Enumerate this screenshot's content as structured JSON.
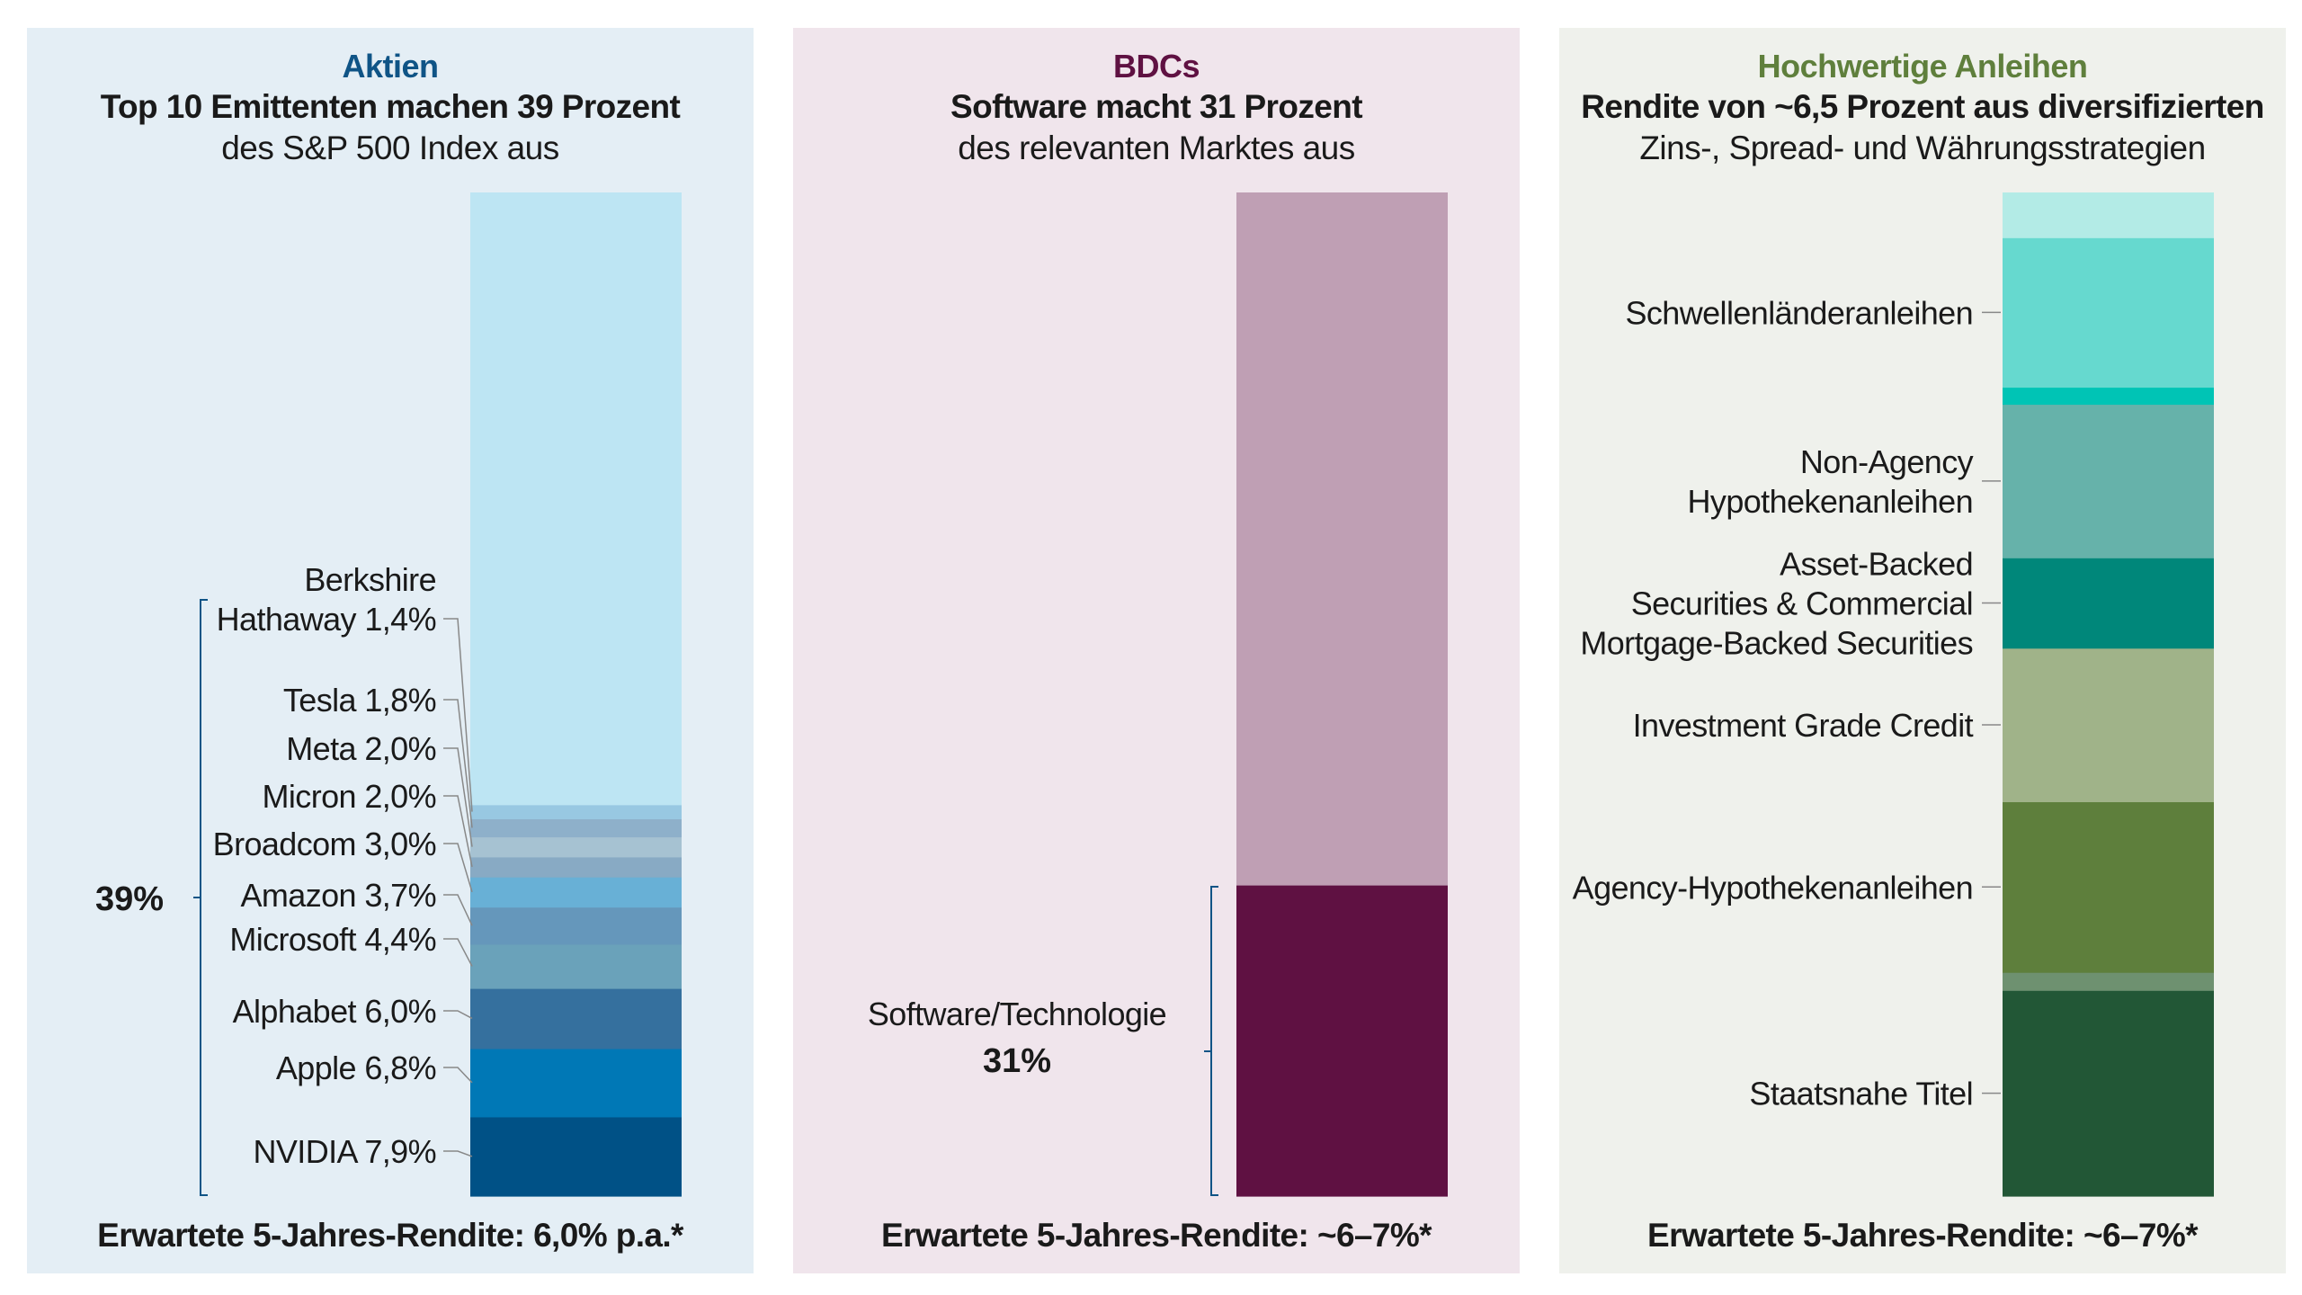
{
  "chart_data": [
    {
      "type": "bar",
      "category": "Aktien",
      "title": "Top 10 Emittenten machen 39 Prozent",
      "subtitle": "des S&P 500 Index aus",
      "footer": "Erwartete 5-Jahres-Rendite: 6,0% p.a.*",
      "bracket_label": "39%",
      "segments": [
        {
          "name": "NVIDIA",
          "label": "NVIDIA 7,9%",
          "value": 7.9,
          "color": "#005186"
        },
        {
          "name": "Apple",
          "label": "Apple 6,8%",
          "value": 6.8,
          "color": "#0078b6"
        },
        {
          "name": "Alphabet",
          "label": "Alphabet 6,0%",
          "value": 6.0,
          "color": "#35709e"
        },
        {
          "name": "Microsoft",
          "label": "Microsoft 4,4%",
          "value": 4.4,
          "color": "#6aa2ba"
        },
        {
          "name": "Amazon",
          "label": "Amazon 3,7%",
          "value": 3.7,
          "color": "#6597bb"
        },
        {
          "name": "Broadcom",
          "label": "Broadcom 3,0%",
          "value": 3.0,
          "color": "#68b0d6"
        },
        {
          "name": "Micron",
          "label": "Micron 2,0%",
          "value": 2.0,
          "color": "#88aac4"
        },
        {
          "name": "Meta",
          "label": "Meta 2,0%",
          "value": 2.0,
          "color": "#a6c2d2"
        },
        {
          "name": "Tesla",
          "label": "Tesla 1,8%",
          "value": 1.8,
          "color": "#8eb0ca"
        },
        {
          "name": "Berkshire Hathaway",
          "label_lines": [
            "Berkshire",
            "Hathaway 1,4%"
          ],
          "value": 1.4,
          "color": "#98c8e2"
        },
        {
          "name": "Rest",
          "value": 61.0,
          "color": "#bde5f3"
        }
      ]
    },
    {
      "type": "bar",
      "category": "BDCs",
      "title": "Software macht 31 Prozent",
      "subtitle": "des relevanten Marktes aus",
      "footer": "Erwartete 5-Jahres-Rendite: ~6–7%*",
      "segments": [
        {
          "name": "Software/Technologie",
          "label": "Software/Technologie",
          "value_label": "31%",
          "value": 31,
          "color": "#5f1142"
        },
        {
          "name": "Rest",
          "value": 69,
          "color": "#bf9fb4"
        }
      ]
    },
    {
      "type": "bar",
      "category": "Hochwertige Anleihen",
      "title": "Rendite von ~6,5 Prozent aus diversifizierten",
      "subtitle": "Zins-, Spread- und Währungsstrategien",
      "footer": "Erwartete 5-Jahres-Rendite: ~6–7%*",
      "segments": [
        {
          "name": "Staatsnahe Titel",
          "label_lines": [
            "Staatsnahe Titel"
          ],
          "value": 20.5,
          "color": "#225736"
        },
        {
          "name": "unlabeled-1",
          "value": 1.8,
          "color": "#6e9170"
        },
        {
          "name": "Agency-Hypothekenanleihen",
          "label_lines": [
            "Agency-Hypothekenanleihen"
          ],
          "value": 17.0,
          "color": "#5e7f3c"
        },
        {
          "name": "Investment Grade Credit",
          "label_lines": [
            "Investment Grade Credit"
          ],
          "value": 15.3,
          "color": "#a0b389"
        },
        {
          "name": "Asset-Backed Securities & Commercial Mortgage-Backed Securities",
          "label_lines": [
            "Asset-Backed",
            "Securities & Commercial",
            "Mortgage-Backed Securities"
          ],
          "value": 9.0,
          "color": "#00877a"
        },
        {
          "name": "Non-Agency Hypothekenanleihen",
          "label_lines": [
            "Non-Agency",
            "Hypothekenanleihen"
          ],
          "value": 15.3,
          "color": "#66b2aa"
        },
        {
          "name": "unlabeled-2",
          "value": 1.7,
          "color": "#00c4b5"
        },
        {
          "name": "Schwellenländeranleihen",
          "label_lines": [
            "Schwellenländeranleihen"
          ],
          "value": 14.9,
          "color": "#66d9cf"
        },
        {
          "name": "unlabeled-3",
          "value": 4.5,
          "color": "#b3ebe6"
        }
      ]
    }
  ],
  "colors": {
    "aktien_title": "#0f5486",
    "bdc_title": "#5f1142",
    "anleihen_title": "#5f7f3c",
    "leader_line": "#888888",
    "bracket_aktien": "#0f5486",
    "bracket_bdc": "#0f5486"
  }
}
